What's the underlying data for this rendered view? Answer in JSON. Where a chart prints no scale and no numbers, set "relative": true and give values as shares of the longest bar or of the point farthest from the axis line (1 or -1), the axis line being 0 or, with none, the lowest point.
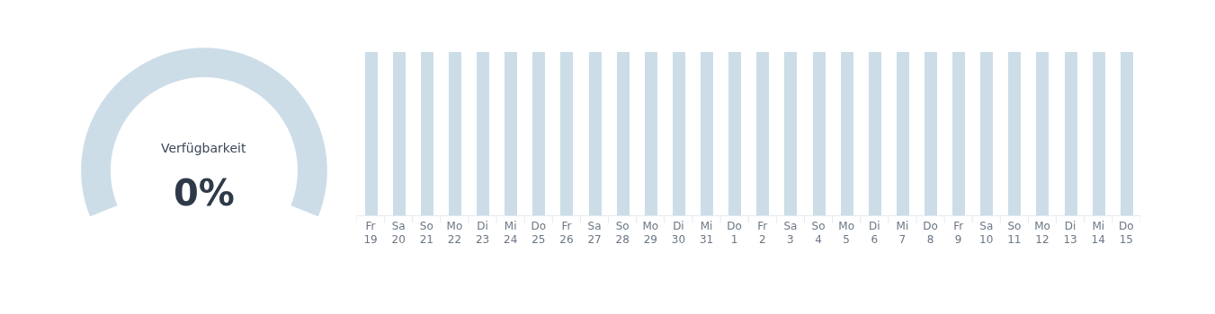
{
  "chart_data": [
    {
      "type": "pie",
      "title": "Verfügbarkeit",
      "categories": [
        null,
        null
      ],
      "values": [
        0,
        100
      ],
      "colors": [
        "#2e3a48",
        "#ccdde8"
      ],
      "annotations": [
        "0%"
      ]
    },
    {
      "type": "bar",
      "relative": true,
      "categories": [
        "Fr 19",
        "Sa 20",
        "So 21",
        "Mo 22",
        "Di 23",
        "Mi 24",
        "Do 25",
        "Fr 26",
        "Sa 27",
        "So 28",
        "Mo 29",
        "Di 30",
        "Mi 31",
        "Do 1",
        "Fr 2",
        "Sa 3",
        "So 4",
        "Mo 5",
        "Di 6",
        "Mi 7",
        "Do 8",
        "Fr 9",
        "Sa 10",
        "So 11",
        "Mo 12",
        "Di 13",
        "Mi 14",
        "Do 15"
      ],
      "values": [
        1,
        1,
        1,
        1,
        1,
        1,
        1,
        1,
        1,
        1,
        1,
        1,
        1,
        1,
        1,
        1,
        1,
        1,
        1,
        1,
        1,
        1,
        1,
        1,
        1,
        1,
        1,
        1
      ],
      "color": "#ccdde8"
    }
  ]
}
